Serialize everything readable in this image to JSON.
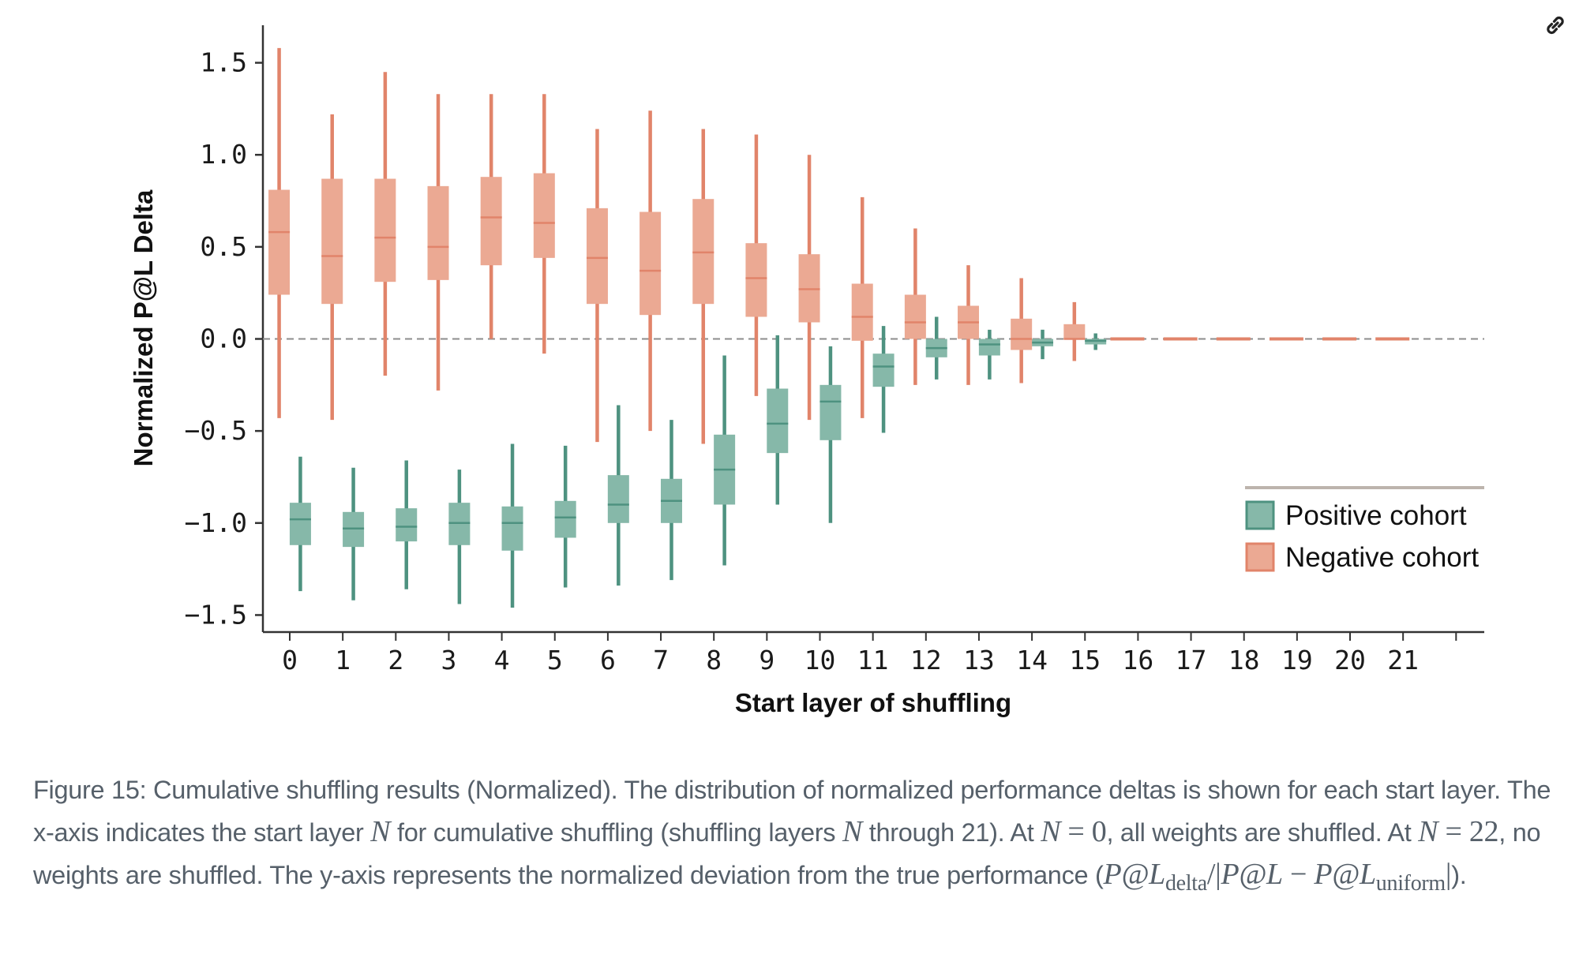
{
  "page": {
    "link_icon": "link-icon"
  },
  "caption": {
    "prefix": "Figure 15: Cumulative shuffling results (Normalized). The distribution of normalized performance deltas is shown for each start layer. The x-axis indicates the start layer ",
    "var_N": "N",
    "part2": " for cumulative shuffling (shuffling layers ",
    "part3": " through 21). At ",
    "eq0": " = 0",
    "part4": ", all weights are shuffled. At ",
    "eq22": " = 22",
    "part5": ", no weights are shuffled. The y-axis represents the normalized deviation from the true performance (",
    "formula_pl": "P@L",
    "formula_delta_sub": "delta",
    "formula_div": "/|",
    "formula_minus": " − ",
    "formula_uniform_sub": "uniform",
    "formula_end": "|",
    "suffix": ")."
  },
  "chart_data": {
    "type": "boxplot",
    "title": "",
    "xlabel": "Start layer of shuffling",
    "ylabel": "Normalized P@L Delta",
    "categories": [
      "0",
      "1",
      "2",
      "3",
      "4",
      "5",
      "6",
      "7",
      "8",
      "9",
      "10",
      "11",
      "12",
      "13",
      "14",
      "15",
      "16",
      "17",
      "18",
      "19",
      "20",
      "21"
    ],
    "x_tick_count": 23,
    "yticks": [
      1.5,
      1.0,
      0.5,
      0.0,
      -0.5,
      -1.0,
      -1.5
    ],
    "ytick_labels": [
      "1.5",
      "1.0",
      "0.5",
      "0.0",
      "−0.5",
      "−1.0",
      "−1.5"
    ],
    "ylim": [
      -1.58,
      1.78
    ],
    "reference_line": {
      "y": 0.0,
      "style": "dashed",
      "color": "#8c8c8c"
    },
    "grid": false,
    "legend": {
      "placement": "lower-right",
      "entries": [
        "Positive cohort",
        "Negative cohort"
      ]
    },
    "series": [
      {
        "name": "Positive cohort",
        "color_fill": "#86b8a9",
        "color_line": "#4e9280",
        "offset": 0.2,
        "boxes": [
          {
            "layer": 0,
            "whislo": -1.37,
            "q1": -1.12,
            "med": -0.98,
            "q3": -0.89,
            "whishi": -0.64
          },
          {
            "layer": 1,
            "whislo": -1.42,
            "q1": -1.13,
            "med": -1.03,
            "q3": -0.94,
            "whishi": -0.7
          },
          {
            "layer": 2,
            "whislo": -1.36,
            "q1": -1.1,
            "med": -1.02,
            "q3": -0.92,
            "whishi": -0.66
          },
          {
            "layer": 3,
            "whislo": -1.44,
            "q1": -1.12,
            "med": -1.0,
            "q3": -0.89,
            "whishi": -0.71
          },
          {
            "layer": 4,
            "whislo": -1.46,
            "q1": -1.15,
            "med": -1.0,
            "q3": -0.91,
            "whishi": -0.57
          },
          {
            "layer": 5,
            "whislo": -1.35,
            "q1": -1.08,
            "med": -0.97,
            "q3": -0.88,
            "whishi": -0.58
          },
          {
            "layer": 6,
            "whislo": -1.34,
            "q1": -1.0,
            "med": -0.9,
            "q3": -0.74,
            "whishi": -0.36
          },
          {
            "layer": 7,
            "whislo": -1.31,
            "q1": -1.0,
            "med": -0.88,
            "q3": -0.76,
            "whishi": -0.44
          },
          {
            "layer": 8,
            "whislo": -1.23,
            "q1": -0.9,
            "med": -0.71,
            "q3": -0.52,
            "whishi": -0.09
          },
          {
            "layer": 9,
            "whislo": -0.9,
            "q1": -0.62,
            "med": -0.46,
            "q3": -0.27,
            "whishi": 0.02
          },
          {
            "layer": 10,
            "whislo": -1.0,
            "q1": -0.55,
            "med": -0.34,
            "q3": -0.25,
            "whishi": -0.04
          },
          {
            "layer": 11,
            "whislo": -0.51,
            "q1": -0.26,
            "med": -0.15,
            "q3": -0.08,
            "whishi": 0.07
          },
          {
            "layer": 12,
            "whislo": -0.22,
            "q1": -0.1,
            "med": -0.05,
            "q3": 0.0,
            "whishi": 0.12
          },
          {
            "layer": 13,
            "whislo": -0.22,
            "q1": -0.09,
            "med": -0.03,
            "q3": 0.0,
            "whishi": 0.05
          },
          {
            "layer": 14,
            "whislo": -0.11,
            "q1": -0.04,
            "med": -0.02,
            "q3": 0.0,
            "whishi": 0.05
          },
          {
            "layer": 15,
            "whislo": -0.06,
            "q1": -0.03,
            "med": -0.01,
            "q3": 0.0,
            "whishi": 0.03
          }
        ]
      },
      {
        "name": "Negative cohort",
        "color_fill": "#eba993",
        "color_line": "#e1846a",
        "offset": -0.2,
        "boxes": [
          {
            "layer": 0,
            "whislo": -0.43,
            "q1": 0.24,
            "med": 0.58,
            "q3": 0.81,
            "whishi": 1.58
          },
          {
            "layer": 1,
            "whislo": -0.44,
            "q1": 0.19,
            "med": 0.45,
            "q3": 0.87,
            "whishi": 1.22
          },
          {
            "layer": 2,
            "whislo": -0.2,
            "q1": 0.31,
            "med": 0.55,
            "q3": 0.87,
            "whishi": 1.45
          },
          {
            "layer": 3,
            "whislo": -0.28,
            "q1": 0.32,
            "med": 0.5,
            "q3": 0.83,
            "whishi": 1.33
          },
          {
            "layer": 4,
            "whislo": 0.0,
            "q1": 0.4,
            "med": 0.66,
            "q3": 0.88,
            "whishi": 1.33
          },
          {
            "layer": 5,
            "whislo": -0.08,
            "q1": 0.44,
            "med": 0.63,
            "q3": 0.9,
            "whishi": 1.33
          },
          {
            "layer": 6,
            "whislo": -0.56,
            "q1": 0.19,
            "med": 0.44,
            "q3": 0.71,
            "whishi": 1.14
          },
          {
            "layer": 7,
            "whislo": -0.5,
            "q1": 0.13,
            "med": 0.37,
            "q3": 0.69,
            "whishi": 1.24
          },
          {
            "layer": 8,
            "whislo": -0.57,
            "q1": 0.19,
            "med": 0.47,
            "q3": 0.76,
            "whishi": 1.14
          },
          {
            "layer": 9,
            "whislo": -0.31,
            "q1": 0.12,
            "med": 0.33,
            "q3": 0.52,
            "whishi": 1.11
          },
          {
            "layer": 10,
            "whislo": -0.44,
            "q1": 0.09,
            "med": 0.27,
            "q3": 0.46,
            "whishi": 1.0
          },
          {
            "layer": 11,
            "whislo": -0.43,
            "q1": -0.01,
            "med": 0.12,
            "q3": 0.3,
            "whishi": 0.77
          },
          {
            "layer": 12,
            "whislo": -0.25,
            "q1": 0.0,
            "med": 0.09,
            "q3": 0.24,
            "whishi": 0.6
          },
          {
            "layer": 13,
            "whislo": -0.25,
            "q1": 0.0,
            "med": 0.09,
            "q3": 0.18,
            "whishi": 0.4
          },
          {
            "layer": 14,
            "whislo": -0.24,
            "q1": -0.06,
            "med": 0.0,
            "q3": 0.11,
            "whishi": 0.33
          },
          {
            "layer": 15,
            "whislo": -0.12,
            "q1": 0.0,
            "med": 0.0,
            "q3": 0.08,
            "whishi": 0.2
          },
          {
            "layer": 16,
            "whislo": 0.0,
            "q1": 0.0,
            "med": 0.0,
            "q3": 0.0,
            "whishi": 0.0
          },
          {
            "layer": 17,
            "whislo": 0.0,
            "q1": 0.0,
            "med": 0.0,
            "q3": 0.0,
            "whishi": 0.0
          },
          {
            "layer": 18,
            "whislo": 0.0,
            "q1": 0.0,
            "med": 0.0,
            "q3": 0.0,
            "whishi": 0.0
          },
          {
            "layer": 19,
            "whislo": 0.0,
            "q1": 0.0,
            "med": 0.0,
            "q3": 0.0,
            "whishi": 0.0
          },
          {
            "layer": 20,
            "whislo": 0.0,
            "q1": 0.0,
            "med": 0.0,
            "q3": 0.0,
            "whishi": 0.0
          },
          {
            "layer": 21,
            "whislo": 0.0,
            "q1": 0.0,
            "med": 0.0,
            "q3": 0.0,
            "whishi": 0.0
          }
        ]
      }
    ]
  }
}
